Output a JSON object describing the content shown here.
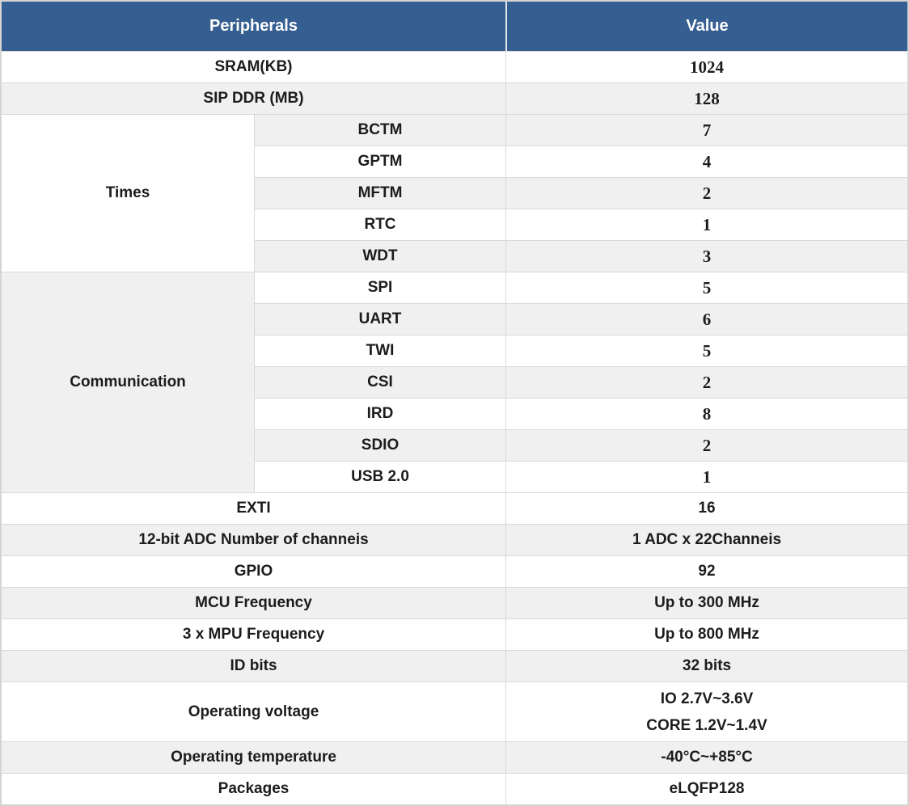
{
  "table": {
    "columns": {
      "peripherals": "Peripherals",
      "value": "Value"
    },
    "colors": {
      "header_bg": "#365f91",
      "header_text": "#ffffff",
      "stripe_bg": "#f0f0f0",
      "row_bg": "#ffffff",
      "border": "#d9d9d9",
      "text": "#1c1c1c"
    },
    "rows_top": [
      {
        "label": "SRAM(KB)",
        "value": "1024"
      },
      {
        "label": "SIP DDR (MB)",
        "value": "128"
      }
    ],
    "groups": [
      {
        "label": "Times",
        "items": [
          {
            "label": "BCTM",
            "value": "7"
          },
          {
            "label": "GPTM",
            "value": "4"
          },
          {
            "label": "MFTM",
            "value": "2"
          },
          {
            "label": "RTC",
            "value": "1"
          },
          {
            "label": "WDT",
            "value": "3"
          }
        ]
      },
      {
        "label": "Communication",
        "items": [
          {
            "label": "SPI",
            "value": "5"
          },
          {
            "label": "UART",
            "value": "6"
          },
          {
            "label": "TWI",
            "value": "5"
          },
          {
            "label": "CSI",
            "value": "2"
          },
          {
            "label": "IRD",
            "value": "8"
          },
          {
            "label": "SDIO",
            "value": "2"
          },
          {
            "label": "USB 2.0",
            "value": "1"
          }
        ]
      }
    ],
    "rows_bottom": [
      {
        "label": "EXTI",
        "value": "16"
      },
      {
        "label": "12-bit ADC Number of channeis",
        "value": "1 ADC x 22Channeis"
      },
      {
        "label": "GPIO",
        "value": "92"
      },
      {
        "label": "MCU Frequency",
        "value": "Up to 300 MHz"
      },
      {
        "label": "3 x MPU Frequency",
        "value": "Up to 800 MHz"
      },
      {
        "label": "ID bits",
        "value": "32 bits"
      },
      {
        "label": "Operating voltage",
        "value_line1": "IO 2.7V~3.6V",
        "value_line2": "CORE 1.2V~1.4V"
      },
      {
        "label": "Operating temperature",
        "value": "-40°C~+85°C"
      },
      {
        "label": "Packages",
        "value": "eLQFP128"
      }
    ]
  }
}
